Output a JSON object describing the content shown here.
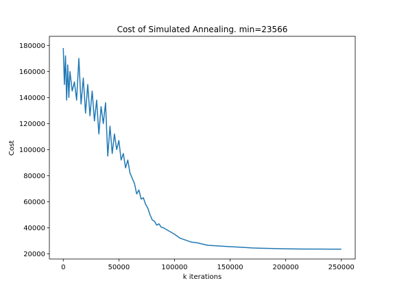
{
  "chart_data": {
    "type": "line",
    "title": "Cost of Simulated Annealing. min=23566",
    "xlabel": "k iterations",
    "ylabel": "Cost",
    "xlim": [
      -12500,
      262500
    ],
    "ylim": [
      16000,
      187000
    ],
    "xticks": [
      0,
      50000,
      100000,
      150000,
      200000,
      250000
    ],
    "xtick_labels": [
      "0",
      "50000",
      "100000",
      "150000",
      "200000",
      "250000"
    ],
    "yticks": [
      20000,
      40000,
      60000,
      80000,
      100000,
      120000,
      140000,
      160000,
      180000
    ],
    "ytick_labels": [
      "20000",
      "40000",
      "60000",
      "80000",
      "100000",
      "120000",
      "140000",
      "160000",
      "180000"
    ],
    "grid": false,
    "line_color": "#1f77b4",
    "series": [
      {
        "x": [
          0,
          1000,
          2000,
          3000,
          4000,
          5000,
          6000,
          8000,
          10000,
          12000,
          14000,
          16000,
          18000,
          20000,
          22000,
          24000,
          26000,
          28000,
          30000,
          32000,
          34000,
          36000,
          38000,
          40000,
          42000,
          44000,
          46000,
          48000,
          50000,
          52000,
          54000,
          56000,
          58000,
          60000,
          62000,
          64000,
          66000,
          68000,
          70000,
          72000,
          74000,
          76000,
          78000,
          80000,
          82000,
          84000,
          86000,
          88000,
          90000,
          95000,
          100000,
          105000,
          110000,
          115000,
          120000,
          125000,
          130000,
          140000,
          150000,
          160000,
          170000,
          180000,
          190000,
          200000,
          210000,
          220000,
          230000,
          240000,
          250000
        ],
        "y": [
          178000,
          150000,
          172000,
          138000,
          165000,
          140000,
          160000,
          145000,
          152000,
          138000,
          170000,
          135000,
          155000,
          128000,
          150000,
          126000,
          145000,
          122000,
          138000,
          112000,
          133000,
          120000,
          136000,
          95000,
          118000,
          97000,
          112000,
          100000,
          107000,
          92000,
          97000,
          86000,
          92000,
          82000,
          78000,
          74000,
          66000,
          69000,
          62000,
          63000,
          58000,
          55000,
          50000,
          46000,
          45000,
          42000,
          43000,
          40500,
          40000,
          37500,
          35000,
          32000,
          30500,
          29000,
          28500,
          27500,
          26500,
          26000,
          25500,
          25000,
          24500,
          24200,
          24000,
          23800,
          23700,
          23650,
          23600,
          23570,
          23566
        ]
      }
    ]
  }
}
